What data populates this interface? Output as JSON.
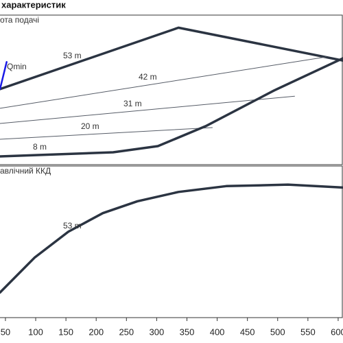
{
  "title": "характеристик",
  "chart_data": [
    {
      "type": "line",
      "y_label": "ота подачі",
      "xlim": [
        41,
        608
      ],
      "ylim": [
        0,
        100
      ],
      "series": [
        {
          "name": "53 m",
          "color": "#2b3442",
          "line_width": 3.5,
          "x": [
            41,
            336,
            608
          ],
          "values": [
            52,
            95,
            72
          ]
        },
        {
          "name": "42 m",
          "color": "#555b66",
          "line_width": 1,
          "x": [
            41,
            580
          ],
          "values": [
            38.5,
            74.5
          ]
        },
        {
          "name": "31 m",
          "color": "#555b66",
          "line_width": 1,
          "x": [
            41,
            528
          ],
          "values": [
            27.9,
            47
          ]
        },
        {
          "name": "20 m",
          "color": "#555b66",
          "line_width": 1,
          "x": [
            41,
            392
          ],
          "values": [
            16.8,
            25
          ]
        },
        {
          "name": "8 m",
          "color": "#2b3442",
          "line_width": 3.5,
          "x": [
            41,
            228,
            302,
            381,
            494,
            608
          ],
          "values": [
            4.8,
            7.7,
            12,
            26,
            51,
            73.6
          ]
        },
        {
          "name": "Qmin",
          "color": "#1a1ae6",
          "line_width": 2.5,
          "x": [
            41,
            52
          ],
          "values": [
            52,
            71
          ]
        }
      ]
    },
    {
      "type": "line",
      "y_label": "авлічний ККД",
      "xlim": [
        41,
        608
      ],
      "ylim": [
        0,
        100
      ],
      "xticks": [
        50,
        100,
        150,
        200,
        250,
        300,
        350,
        400,
        450,
        500,
        550,
        600
      ],
      "series": [
        {
          "name": "53 m",
          "color": "#2b3442",
          "line_width": 3.5,
          "x": [
            41,
            98,
            154,
            211,
            268,
            336,
            415,
            517,
            608
          ],
          "values": [
            17.2,
            41,
            58.8,
            71.5,
            79.6,
            86,
            90,
            91,
            89
          ]
        }
      ]
    }
  ]
}
